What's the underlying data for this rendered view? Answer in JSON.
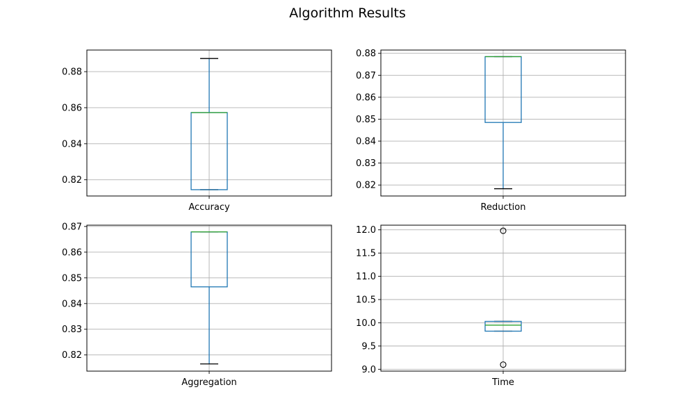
{
  "figure": {
    "title": "Algorithm Results"
  },
  "colors": {
    "box": "#1f77b4",
    "median": "#2ca02c",
    "whisker_cap": "#000000",
    "grid": "#b0b0b0",
    "axes": "#000000"
  },
  "chart_data": [
    {
      "type": "box",
      "xlabel": "Accuracy",
      "grid": true,
      "ylim": [
        0.811,
        0.892
      ],
      "yticks": [
        0.82,
        0.84,
        0.86,
        0.88
      ],
      "tick_decimals": 2,
      "stats": {
        "whisker_low": 0.8145,
        "q1": 0.8145,
        "median": 0.8573,
        "q3": 0.8573,
        "whisker_high": 0.8873
      },
      "outliers": []
    },
    {
      "type": "box",
      "xlabel": "Reduction",
      "grid": true,
      "ylim": [
        0.815,
        0.8815
      ],
      "yticks": [
        0.82,
        0.83,
        0.84,
        0.85,
        0.86,
        0.87,
        0.88
      ],
      "tick_decimals": 2,
      "stats": {
        "whisker_low": 0.8183,
        "q1": 0.8485,
        "median": 0.8785,
        "q3": 0.8785,
        "whisker_high": 0.8785
      },
      "outliers": []
    },
    {
      "type": "box",
      "xlabel": "Aggregation",
      "grid": true,
      "ylim": [
        0.8137,
        0.8705
      ],
      "yticks": [
        0.82,
        0.83,
        0.84,
        0.85,
        0.86,
        0.87
      ],
      "tick_decimals": 2,
      "stats": {
        "whisker_low": 0.8165,
        "q1": 0.8465,
        "median": 0.8679,
        "q3": 0.8679,
        "whisker_high": 0.8679
      },
      "outliers": []
    },
    {
      "type": "box",
      "xlabel": "Time",
      "grid": true,
      "ylim": [
        8.96,
        12.1
      ],
      "yticks": [
        9.0,
        9.5,
        10.0,
        10.5,
        11.0,
        11.5,
        12.0
      ],
      "tick_decimals": 1,
      "stats": {
        "whisker_low": 9.82,
        "q1": 9.82,
        "median": 9.95,
        "q3": 10.03,
        "whisker_high": 10.03
      },
      "outliers": [
        11.98,
        9.1
      ]
    }
  ]
}
